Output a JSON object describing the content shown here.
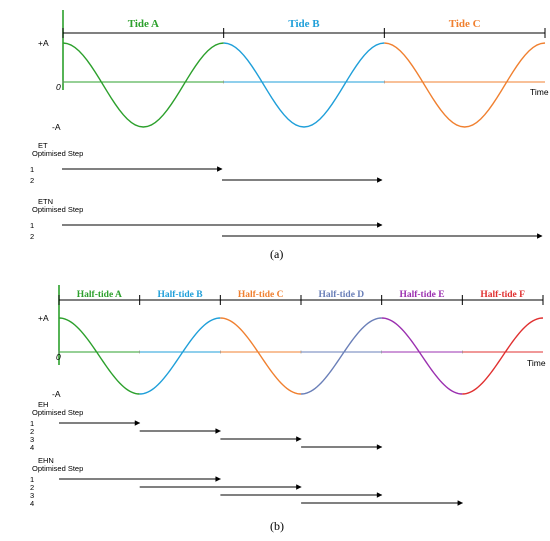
{
  "panel_a": {
    "caption": "(a)",
    "y_labels": {
      "top": "+A",
      "zero": "0",
      "bottom": "-A"
    },
    "x_label": "Time",
    "segments": [
      {
        "label": "Tide A",
        "color": "#2ca02c"
      },
      {
        "label": "Tide B",
        "color": "#1f9fd9"
      },
      {
        "label": "Tide C",
        "color": "#f08030"
      }
    ],
    "groups": [
      {
        "title": "ET",
        "subtitle": "Optimised Step",
        "steps": [
          {
            "num": "1",
            "start": 0,
            "end": 1
          },
          {
            "num": "2",
            "start": 1,
            "end": 2
          }
        ]
      },
      {
        "title": "ETN",
        "subtitle": "Optimised Step",
        "steps": [
          {
            "num": "1",
            "start": 0,
            "end": 2
          },
          {
            "num": "2",
            "start": 1,
            "end": 3
          }
        ]
      }
    ]
  },
  "panel_b": {
    "caption": "(b)",
    "y_labels": {
      "top": "+A",
      "zero": "0",
      "bottom": "-A"
    },
    "x_label": "Time",
    "segments": [
      {
        "label": "Half-tide A",
        "color": "#2ca02c"
      },
      {
        "label": "Half-tide B",
        "color": "#1f9fd9"
      },
      {
        "label": "Half-tide C",
        "color": "#f08030"
      },
      {
        "label": "Half-tide D",
        "color": "#6a7fb8"
      },
      {
        "label": "Half-tide E",
        "color": "#9b30b0"
      },
      {
        "label": "Half-tide F",
        "color": "#e03030"
      }
    ],
    "groups": [
      {
        "title": "EH",
        "subtitle": "Optimised Step",
        "steps": [
          {
            "num": "1",
            "start": 0,
            "end": 1
          },
          {
            "num": "2",
            "start": 1,
            "end": 2
          },
          {
            "num": "3",
            "start": 2,
            "end": 3
          },
          {
            "num": "4",
            "start": 3,
            "end": 4
          }
        ]
      },
      {
        "title": "EHN",
        "subtitle": "Optimised Step",
        "steps": [
          {
            "num": "1",
            "start": 0,
            "end": 2
          },
          {
            "num": "2",
            "start": 1,
            "end": 3
          },
          {
            "num": "3",
            "start": 2,
            "end": 4
          },
          {
            "num": "4",
            "start": 3,
            "end": 5
          }
        ]
      }
    ]
  }
}
